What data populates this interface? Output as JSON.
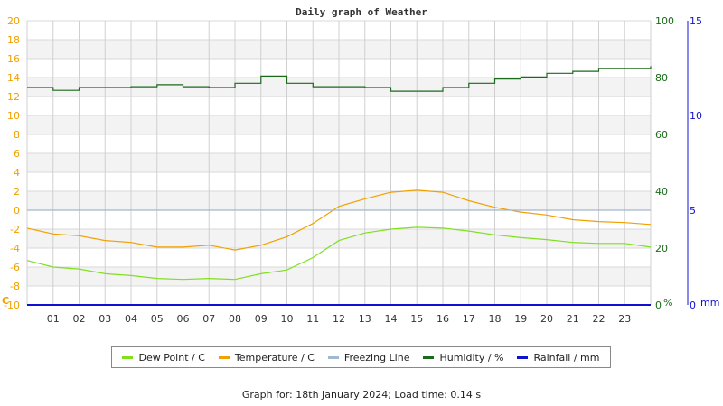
{
  "chart_data": {
    "type": "line",
    "title": "Daily graph of Weather",
    "xlabel": "",
    "x_ticks": [
      "01",
      "02",
      "03",
      "04",
      "05",
      "06",
      "07",
      "08",
      "09",
      "10",
      "11",
      "12",
      "13",
      "14",
      "15",
      "16",
      "17",
      "18",
      "19",
      "20",
      "21",
      "22",
      "23"
    ],
    "x_hours": [
      0,
      1,
      2,
      3,
      4,
      5,
      6,
      7,
      8,
      9,
      10,
      11,
      12,
      13,
      14,
      15,
      16,
      17,
      18,
      19,
      20,
      21,
      22,
      23,
      24
    ],
    "y_left": {
      "label": "C",
      "range": [
        -10,
        20
      ],
      "ticks": [
        20,
        18,
        16,
        14,
        12,
        10,
        8,
        6,
        4,
        2,
        0,
        -2,
        -4,
        -6,
        -8,
        -10
      ],
      "color": "#f0a000"
    },
    "y_right_humidity": {
      "label": "%",
      "range": [
        0,
        100
      ],
      "ticks": [
        100,
        80,
        60,
        40,
        20,
        0
      ],
      "color": "#1a6a1a"
    },
    "y_right_rain": {
      "label": "mm",
      "range": [
        0,
        15
      ],
      "ticks": [
        15,
        10,
        5,
        0
      ],
      "color": "#1010d0"
    },
    "grid": true,
    "legend_position": "bottom",
    "series": [
      {
        "name": "Dew Point / C",
        "color": "#80e020",
        "axis": "left",
        "values": [
          -5.3,
          -6.0,
          -6.2,
          -6.7,
          -6.9,
          -7.2,
          -7.3,
          -7.2,
          -7.3,
          -6.7,
          -6.3,
          -5.0,
          -3.2,
          -2.4,
          -2.0,
          -1.8,
          -1.9,
          -2.2,
          -2.6,
          -2.9,
          -3.1,
          -3.4,
          -3.5,
          -3.5,
          -3.9
        ]
      },
      {
        "name": "Temperature / C",
        "color": "#f0a000",
        "axis": "left",
        "values": [
          -1.9,
          -2.5,
          -2.7,
          -3.2,
          -3.4,
          -3.9,
          -3.9,
          -3.7,
          -4.2,
          -3.7,
          -2.8,
          -1.4,
          0.4,
          1.2,
          1.9,
          2.1,
          1.9,
          1.0,
          0.3,
          -0.2,
          -0.5,
          -1.0,
          -1.2,
          -1.3,
          -1.5
        ]
      },
      {
        "name": "Freezing Line",
        "color": "#a0b8d0",
        "axis": "left",
        "values": [
          0,
          0,
          0,
          0,
          0,
          0,
          0,
          0,
          0,
          0,
          0,
          0,
          0,
          0,
          0,
          0,
          0,
          0,
          0,
          0,
          0,
          0,
          0,
          0,
          0
        ]
      },
      {
        "name": "Humidity / %",
        "color": "#1a6a1a",
        "axis": "right_humidity",
        "values": [
          76.5,
          75.5,
          76.5,
          76.5,
          76.8,
          77.5,
          76.8,
          76.5,
          78.0,
          80.5,
          78.0,
          76.8,
          76.8,
          76.5,
          75.2,
          75.2,
          76.5,
          78.0,
          79.5,
          80.2,
          81.5,
          82.2,
          83.2,
          83.2,
          84.0
        ]
      },
      {
        "name": "Rainfall / mm",
        "color": "#1010d0",
        "axis": "right_rain",
        "values": [
          0,
          0,
          0,
          0,
          0,
          0,
          0,
          0,
          0,
          0,
          0,
          0,
          0,
          0,
          0,
          0,
          0,
          0,
          0,
          0,
          0,
          0,
          0,
          0,
          0
        ]
      }
    ]
  },
  "legend": [
    {
      "label": "Dew Point / C",
      "color": "#80e020"
    },
    {
      "label": "Temperature / C",
      "color": "#f0a000"
    },
    {
      "label": "Freezing Line",
      "color": "#a0b8d0"
    },
    {
      "label": "Humidity / %",
      "color": "#1a6a1a"
    },
    {
      "label": "Rainfall / mm",
      "color": "#1010d0"
    }
  ],
  "footer": "Graph for: 18th January 2024; Load time: 0.14 s"
}
